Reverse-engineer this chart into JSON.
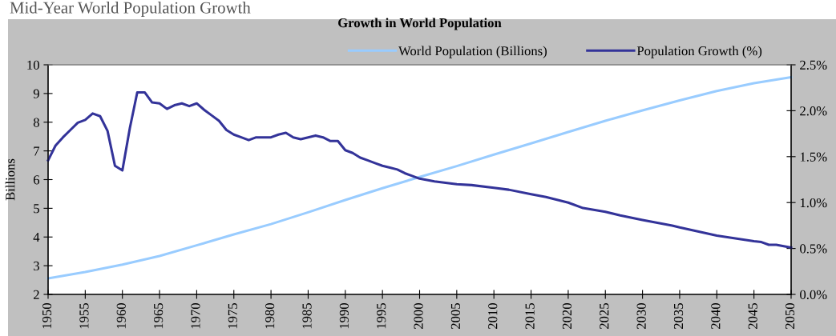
{
  "chart_data": {
    "type": "line",
    "title": "Growth in World Population",
    "annotations": [
      "Mid-Year World Population Growth"
    ],
    "ylabel": "Billions",
    "xlim": [
      1950,
      2050
    ],
    "xticks": [
      1950,
      1955,
      1960,
      1965,
      1970,
      1975,
      1980,
      1985,
      1990,
      1995,
      2000,
      2005,
      2010,
      2015,
      2020,
      2025,
      2030,
      2035,
      2040,
      2045,
      2050
    ],
    "ylim": [
      2,
      10
    ],
    "yticks": [
      2,
      3,
      4,
      5,
      6,
      7,
      8,
      9,
      10
    ],
    "y2lim": [
      0,
      2.5
    ],
    "y2ticks": [
      {
        "value": 0,
        "label": "0.0%"
      },
      {
        "value": 0.5,
        "label": "0.5%"
      },
      {
        "value": 1.0,
        "label": "1.0%"
      },
      {
        "value": 1.5,
        "label": "1.5%"
      },
      {
        "value": 2.0,
        "label": "2.0%"
      },
      {
        "value": 2.5,
        "label": "2.5%"
      }
    ],
    "grid": false,
    "legend": "top right",
    "marker": "none",
    "line_style": "solid",
    "series": [
      {
        "name": "World Population (Billions)",
        "color": "#99ccff",
        "x": [
          1950,
          1955,
          1960,
          1965,
          1970,
          1975,
          1980,
          1985,
          1990,
          1995,
          2000,
          2005,
          2010,
          2015,
          2020,
          2025,
          2030,
          2035,
          2040,
          2045,
          2050
        ],
        "values": [
          2.56,
          2.78,
          3.04,
          3.34,
          3.71,
          4.09,
          4.45,
          4.86,
          5.29,
          5.7,
          6.09,
          6.47,
          6.87,
          7.26,
          7.66,
          8.05,
          8.41,
          8.76,
          9.09,
          9.36,
          9.57
        ]
      },
      {
        "name": "Population Growth (%)",
        "color": "#333399",
        "axis": "y2",
        "x": [
          1950,
          1951,
          1952,
          1953,
          1954,
          1955,
          1956,
          1957,
          1958,
          1959,
          1960,
          1961,
          1962,
          1963,
          1964,
          1965,
          1966,
          1967,
          1968,
          1969,
          1970,
          1971,
          1972,
          1973,
          1974,
          1975,
          1976,
          1977,
          1978,
          1979,
          1980,
          1981,
          1982,
          1983,
          1984,
          1985,
          1986,
          1987,
          1988,
          1989,
          1990,
          1991,
          1992,
          1993,
          1994,
          1995,
          1996,
          1997,
          1998,
          1999,
          2000,
          2002,
          2005,
          2007,
          2010,
          2012,
          2015,
          2017,
          2020,
          2022,
          2025,
          2027,
          2030,
          2032,
          2034,
          2035,
          2040,
          2045,
          2046,
          2047,
          2048,
          2050
        ],
        "values": [
          1.46,
          1.62,
          1.71,
          1.79,
          1.87,
          1.9,
          1.97,
          1.94,
          1.78,
          1.4,
          1.35,
          1.81,
          2.2,
          2.2,
          2.09,
          2.08,
          2.02,
          2.06,
          2.08,
          2.05,
          2.08,
          2.01,
          1.95,
          1.89,
          1.79,
          1.74,
          1.71,
          1.68,
          1.71,
          1.71,
          1.71,
          1.74,
          1.76,
          1.71,
          1.69,
          1.71,
          1.73,
          1.71,
          1.67,
          1.67,
          1.57,
          1.54,
          1.49,
          1.46,
          1.43,
          1.4,
          1.38,
          1.36,
          1.32,
          1.29,
          1.26,
          1.23,
          1.2,
          1.19,
          1.16,
          1.14,
          1.09,
          1.06,
          1.0,
          0.94,
          0.9,
          0.86,
          0.81,
          0.78,
          0.75,
          0.73,
          0.64,
          0.58,
          0.57,
          0.54,
          0.54,
          0.51
        ]
      }
    ]
  }
}
